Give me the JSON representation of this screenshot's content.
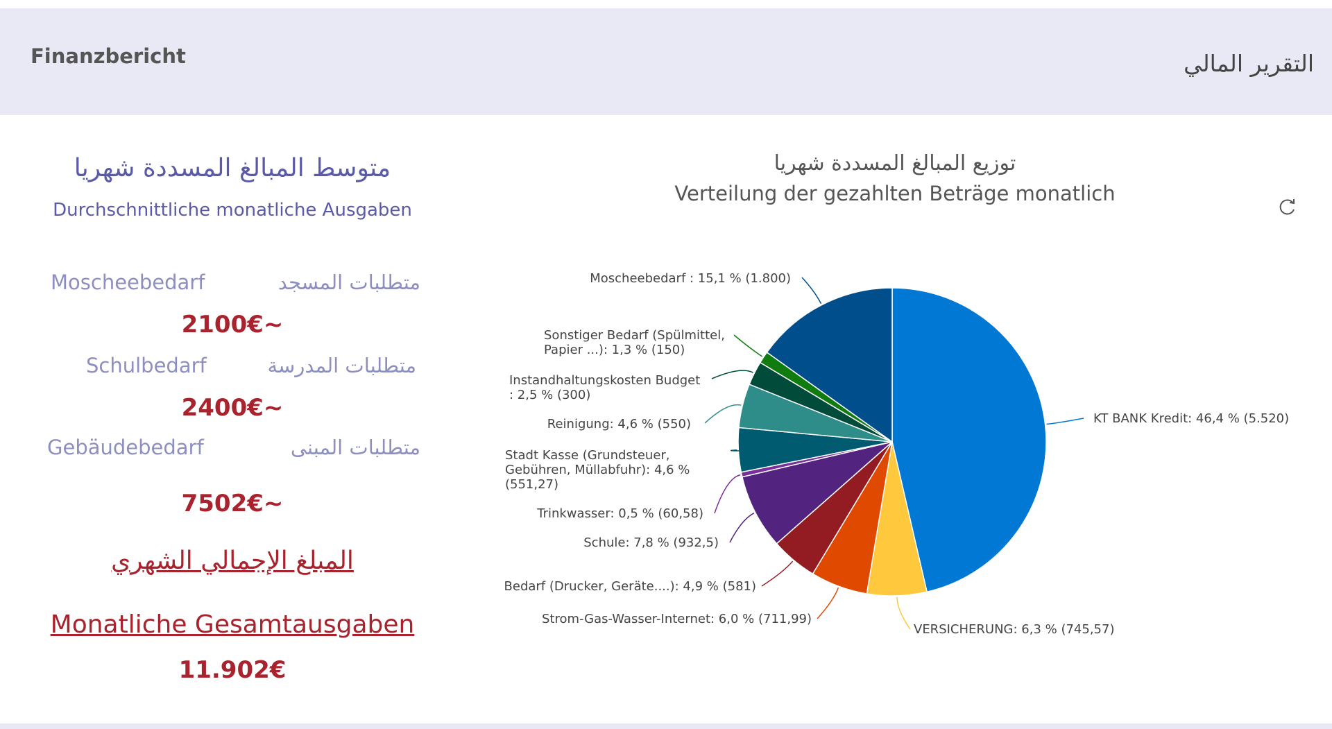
{
  "header": {
    "title_de": "Finanzbericht",
    "title_ar": "التقرير المالي"
  },
  "summary": {
    "title_ar": "متوسط المبالغ  المسددة شهريا",
    "title_de": "Durchschnittliche monatliche Ausgaben",
    "categories": [
      {
        "de": "Moscheebedarf",
        "ar": "متطلبات المسجد",
        "value": "2100€~"
      },
      {
        "de": "Schulbedarf",
        "ar": "متطلبات المدرسة",
        "value": "2400€~"
      },
      {
        "de": "Gebäudebedarf",
        "ar": "متطلبات المبنى",
        "value": "7502€~"
      }
    ],
    "total_ar": "المبلغ الإجمالي الشهري",
    "total_de": "Monatliche Gesamtausgaben",
    "total_value": "11.902€"
  },
  "chart": {
    "title_ar": "توزيع المبالغ المسددة شهريا",
    "title_de": "Verteilung der gezahlten Beträge monatlich",
    "refresh_icon": "refresh-icon"
  },
  "chart_data": {
    "type": "pie",
    "slices": [
      {
        "label": "KT BANK Kredit: 46,4 % (5.520)",
        "value": 5520,
        "color": "#0078d4"
      },
      {
        "label": "VERSICHERUNG: 6,3 % (745,57)",
        "value": 745.57,
        "color": "#ffc83d"
      },
      {
        "label": "Strom-Gas-Wasser-Internet: 6,0 % (711,99)",
        "value": 711.99,
        "color": "#e04a00"
      },
      {
        "label": "Bedarf (Drucker, Geräte....): 4,9 % (581)",
        "value": 581,
        "color": "#931c23"
      },
      {
        "label": "Schule: 7,8 % (932,5)",
        "value": 932.5,
        "color": "#52247f"
      },
      {
        "label": "Trinkwasser: 0,5 % (60,58)",
        "value": 60.58,
        "color": "#7a2e9c"
      },
      {
        "label": "Stadt Kasse (Grundsteuer, Gebühren, Müllabfuhr): 4,6 % (551,27)",
        "value": 551.27,
        "color": "#005b70"
      },
      {
        "label": "Reinigung: 4,6 % (550)",
        "value": 550,
        "color": "#2e8c89"
      },
      {
        "label": "Instandhaltungskosten Budget : 2,5 % (300)",
        "value": 300,
        "color": "#004b3a"
      },
      {
        "label": "Sonstiger Bedarf (Spülmittel, Papier ...): 1,3 % (150)",
        "value": 150,
        "color": "#107c10"
      },
      {
        "label": "Moscheebedarf : 15,1 % (1.800)",
        "value": 1800,
        "color": "#004e8c"
      }
    ]
  }
}
